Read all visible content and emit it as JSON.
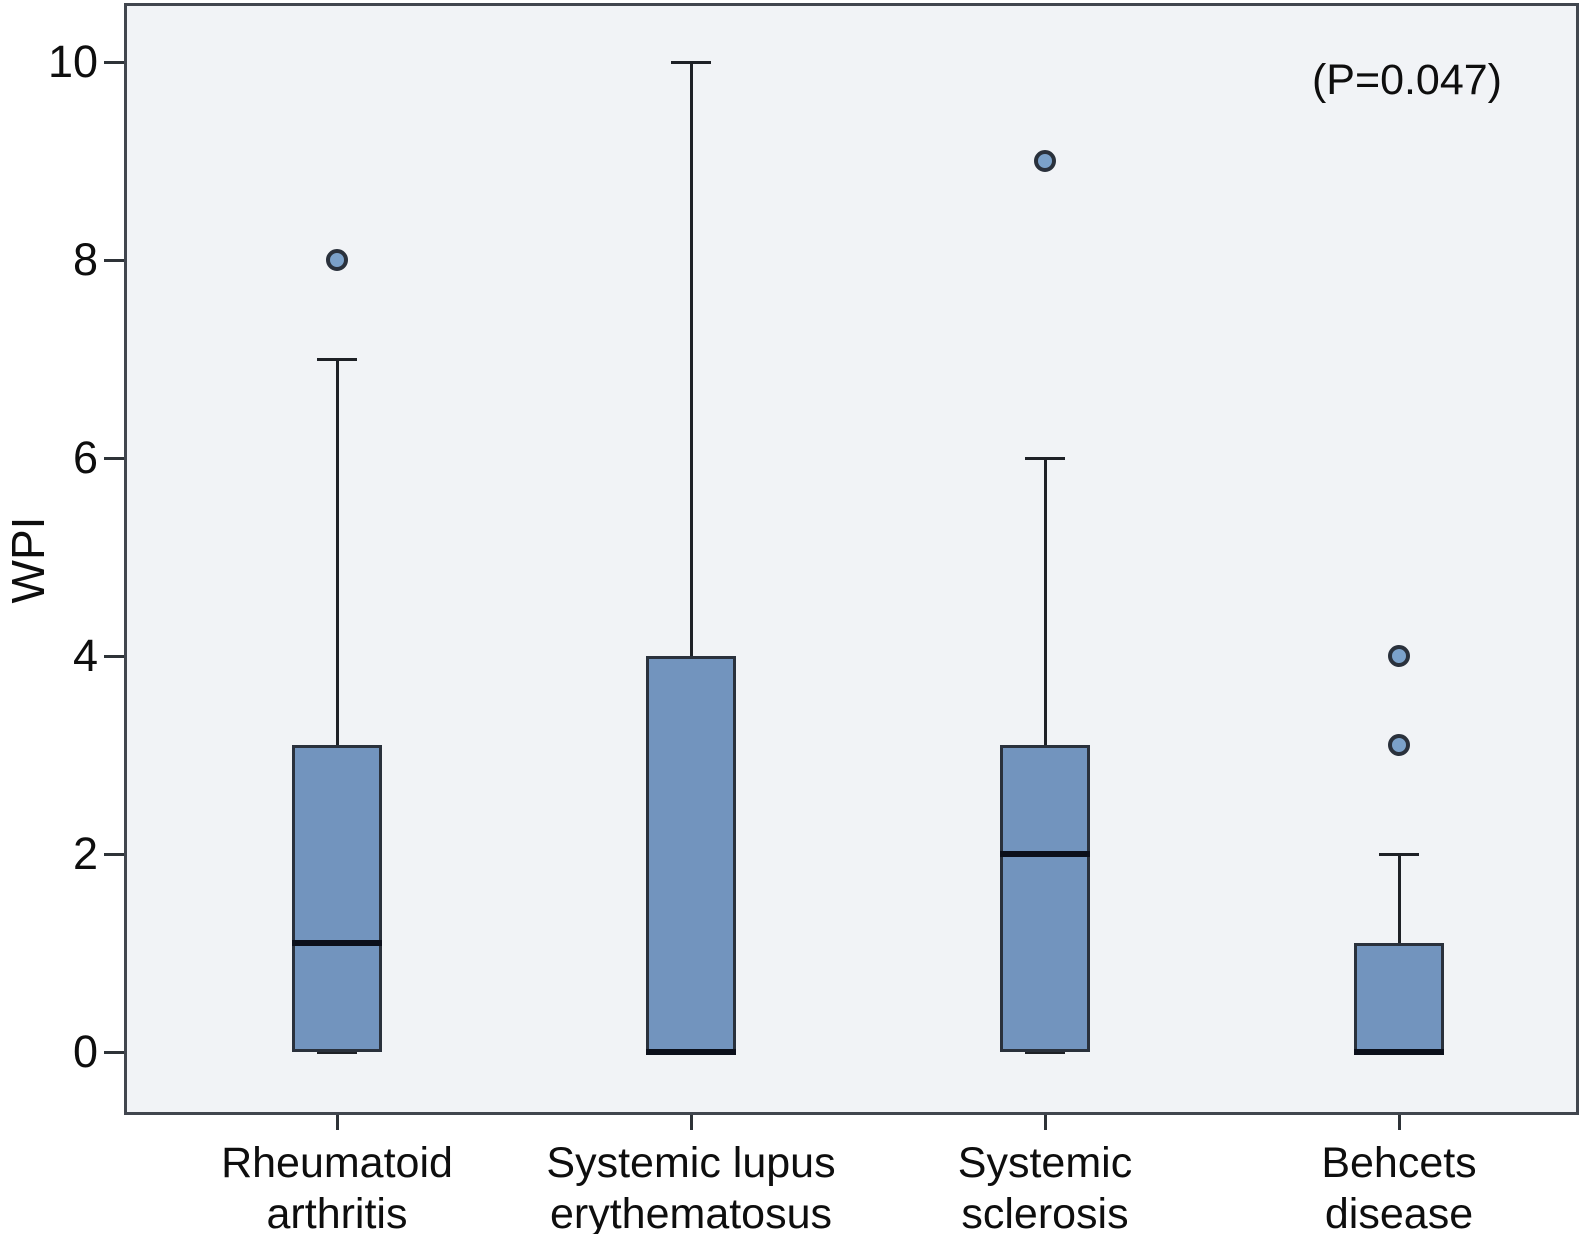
{
  "figure": {
    "y_axis_title": "WPI",
    "annotation": "(P=0.047)"
  },
  "chart_data": {
    "type": "box",
    "title": "",
    "xlabel": "",
    "ylabel": "WPI",
    "annotation": "(P=0.047)",
    "ylim": [
      0,
      10
    ],
    "yticks": [
      0,
      2,
      4,
      6,
      8,
      10
    ],
    "grid": false,
    "legend": "none",
    "categories": [
      "Rheumatoid arthritis",
      "Systemic lupus erythematosus",
      "Systemic sclerosis",
      "Behcets disease"
    ],
    "boxes": [
      {
        "category": "Rheumatoid arthritis",
        "label_lines": [
          "Rheumatoid",
          "arthritis"
        ],
        "whisker_low": 0,
        "q1": 0,
        "median": 1.1,
        "q3": 3.1,
        "whisker_high": 7,
        "outliers": [
          8
        ]
      },
      {
        "category": "Systemic lupus erythematosus",
        "label_lines": [
          "Systemic lupus",
          "erythematosus"
        ],
        "whisker_low": 0,
        "q1": 0,
        "median": 0,
        "q3": 4,
        "whisker_high": 10,
        "outliers": []
      },
      {
        "category": "Systemic sclerosis",
        "label_lines": [
          "Systemic",
          "sclerosis"
        ],
        "whisker_low": 0,
        "q1": 0,
        "median": 2,
        "q3": 3.1,
        "whisker_high": 6,
        "outliers": [
          9
        ]
      },
      {
        "category": "Behcets disease",
        "label_lines": [
          "Behcets",
          "disease"
        ],
        "whisker_low": 0,
        "q1": 0,
        "median": 0,
        "q3": 1.1,
        "whisker_high": 2,
        "outliers": [
          3.1,
          4
        ]
      }
    ],
    "colors": {
      "box_fill": "#7294be",
      "box_border": "#2a313c",
      "median": "#0c101b",
      "whisker": "#1e2126",
      "outlier_fill": "#7ba1ca",
      "plot_background": "#f1f3f6",
      "axis": "#41464e",
      "text": "#0e0e0e"
    }
  }
}
